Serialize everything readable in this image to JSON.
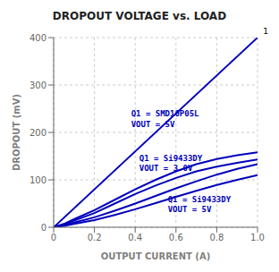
{
  "chart_data": {
    "type": "line",
    "title": "DROPOUT VOLTAGE vs. LOAD",
    "x_label": "OUTPUT CURRENT (A)",
    "y_label": "DROPOUT (mV)",
    "xlim": [
      0,
      1.0
    ],
    "ylim": [
      0,
      400
    ],
    "xticks": [
      0,
      0.2,
      0.4,
      0.6,
      0.8,
      {
        "value": 1.0,
        "label": "1.0"
      }
    ],
    "yticks": [
      0,
      100,
      200,
      300,
      400
    ],
    "grid": true,
    "series": [
      {
        "color": "#0000bb",
        "x": [
          0,
          1.0
        ],
        "values": [
          0,
          400
        ]
      },
      {
        "color": "#0000bb",
        "x": [
          0,
          0.05,
          0.1,
          0.2,
          0.3,
          0.4,
          0.5,
          0.6,
          0.7,
          0.8,
          0.9,
          1.0
        ],
        "values": [
          0,
          6,
          14,
          30,
          50,
          70,
          88,
          104,
          118,
          128,
          136,
          143
        ]
      },
      {
        "color": "#0000bb",
        "x": [
          0,
          0.05,
          0.1,
          0.2,
          0.3,
          0.4,
          0.5,
          0.6,
          0.7,
          0.8,
          0.9,
          1.0
        ],
        "values": [
          0,
          7,
          17,
          36,
          58,
          80,
          100,
          118,
          133,
          144,
          152,
          158
        ]
      },
      {
        "color": "#0000bb",
        "x": [
          0,
          0.05,
          0.1,
          0.2,
          0.3,
          0.4,
          0.5,
          0.6,
          0.7,
          0.8,
          0.9,
          1.0
        ],
        "values": [
          0,
          3,
          7,
          15,
          26,
          38,
          51,
          64,
          77,
          89,
          100,
          110
        ]
      },
      {
        "color": "#0000bb",
        "x": [
          0,
          0.05,
          0.1,
          0.2,
          0.3,
          0.4,
          0.5,
          0.6,
          0.7,
          0.8,
          0.9,
          1.0
        ],
        "values": [
          0,
          4,
          10,
          21,
          35,
          50,
          66,
          82,
          97,
          111,
          123,
          133
        ]
      }
    ],
    "annotations": [
      {
        "text": "Q1 = SMD10P05L",
        "x": 0.38,
        "y": 240,
        "color": "#0000bb"
      },
      {
        "text": "VOUT = 5V",
        "x": 0.38,
        "y": 218,
        "color": "#0000bb"
      },
      {
        "text": "Q1 = Si9433DY",
        "x": 0.42,
        "y": 145,
        "color": "#0000bb"
      },
      {
        "text": "VOUT = 3.0V",
        "x": 0.42,
        "y": 125,
        "color": "#0000bb"
      },
      {
        "text": "Q1 = Si9433DY",
        "x": 0.56,
        "y": 58,
        "color": "#0000bb"
      },
      {
        "text": "VOUT = 5V",
        "x": 0.56,
        "y": 39,
        "color": "#0000bb"
      },
      {
        "text": "1"
      }
    ]
  }
}
